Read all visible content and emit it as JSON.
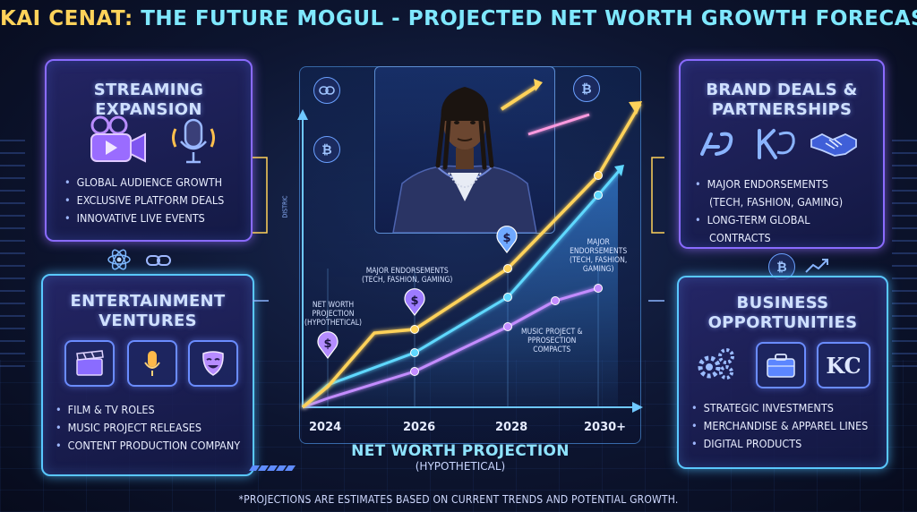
{
  "title": {
    "part1": "KAI CENAT:",
    "part2": "THE FUTURE MOGUL - PROJECTED NET WORTH GROWTH FORECAST"
  },
  "panels": {
    "streaming": {
      "title": "STREAMING EXPANSION",
      "bullets": [
        "GLOBAL AUDIENCE GROWTH",
        "EXCLUSIVE PLATFORM DEALS",
        "INNOVATIVE LIVE EVENTS"
      ]
    },
    "entertainment": {
      "title_line1": "ENTERTAINMENT",
      "title_line2": "VENTURES",
      "bullets": [
        "FILM & TV ROLES",
        "MUSIC PROJECT RELEASES",
        "CONTENT PRODUCTION COMPANY"
      ]
    },
    "brand": {
      "title_line1": "BRAND DEALS &",
      "title_line2": "PARTNERSHIPS",
      "bullets": [
        "MAJOR ENDORSEMENTS",
        "(TECH, FASHION, GAMING)",
        "LONG-TERM GLOBAL",
        "CONTRACTS"
      ]
    },
    "business": {
      "title_line1": "BUSINESS",
      "title_line2": "OPPORTUNITIES",
      "logo_text": "KC",
      "bullets": [
        "STRATEGIC INVESTMENTS",
        "MERCHANDISE & APPAREL LINES",
        "DIGITAL PRODUCTS"
      ]
    }
  },
  "chart_data": {
    "type": "line",
    "x": [
      "2024",
      "2026",
      "2028",
      "2030+"
    ],
    "annotations": {
      "a1": [
        "NET WORTH",
        "PROJECTION",
        "(HYPOTHETICAL)"
      ],
      "a2": [
        "MAJOR ENDORSEMENTS",
        "(TECH, FASHION, GAMING)"
      ],
      "a3": [
        "MAJOR",
        "ENDORSEMENTS",
        "(TECH, FASHION,",
        "GAMING)"
      ],
      "a4": [
        "MUSIC PROJECT &",
        "PPROSECTION",
        "COMPACTS"
      ],
      "side": "DISTRIC"
    },
    "colors": {
      "gold": "#ffd25a",
      "cyan": "#5fd8ff",
      "violet": "#c38cff"
    }
  },
  "footer": {
    "proj_title": "NET WORTH PROJECTION",
    "proj_sub": "(HYPOTHETICAL)",
    "note": "*PROJECTIONS ARE ESTIMATES BASED ON CURRENT TRENDS AND POTENTIAL GROWTH."
  },
  "icons": {
    "dollar": "$",
    "bitcoin": "₿"
  }
}
